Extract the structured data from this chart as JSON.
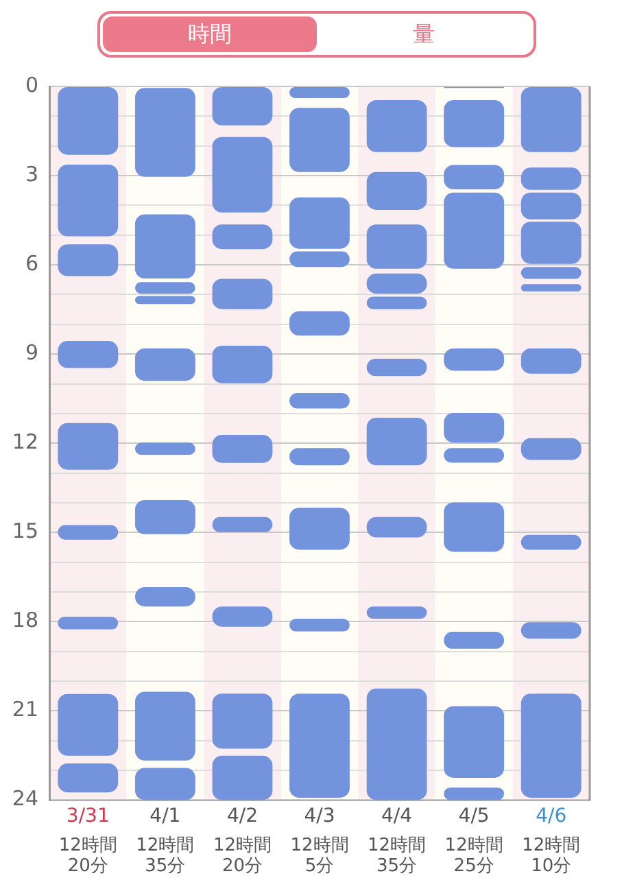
{
  "chart_data": {
    "type": "bar",
    "annotations": [
      "時間",
      "量"
    ],
    "categories": [
      "3/31",
      "4/1",
      "4/2",
      "4/3",
      "4/4",
      "4/5",
      "4/6"
    ],
    "totals": [
      "12時間20分",
      "12時間35分",
      "12時間20分",
      "12時間5分",
      "12時間35分",
      "12時間25分",
      "12時間10分"
    ],
    "series": [
      {
        "color": "#7393dc",
        "base": [
          0,
          0.05,
          0,
          0,
          0.46,
          0,
          0
        ],
        "values": [
          2.3,
          2.99,
          1.31,
          0.39,
          1.75,
          0.05,
          2.21
        ]
      },
      {
        "color": "#7393dc",
        "base": [
          2.63,
          4.3,
          1.7,
          0.72,
          2.88,
          0.46,
          2.73
        ],
        "values": [
          2.41,
          2.16,
          2.54,
          2.16,
          1.27,
          1.58,
          0.75
        ]
      },
      {
        "color": "#7393dc",
        "base": [
          5.31,
          6.58,
          4.64,
          3.73,
          4.64,
          2.64,
          3.57
        ],
        "values": [
          1.07,
          0.39,
          0.83,
          1.73,
          1.49,
          0.82,
          0.9
        ]
      },
      {
        "color": "#7393dc",
        "base": [
          8.56,
          7.05,
          6.47,
          5.55,
          6.29,
          3.57,
          4.55
        ],
        "values": [
          0.91,
          0.27,
          1.02,
          0.52,
          0.68,
          2.56,
          1.42
        ]
      },
      {
        "color": "#7393dc",
        "base": [
          11.32,
          8.81,
          8.72,
          7.56,
          7.07,
          8.81,
          6.07
        ],
        "values": [
          1.57,
          1.09,
          1.26,
          0.82,
          0.42,
          0.75,
          0.4
        ]
      },
      {
        "color": "#7393dc",
        "base": [
          14.75,
          11.98,
          11.72,
          10.31,
          9.16,
          10.98,
          6.65
        ],
        "values": [
          0.49,
          0.41,
          0.94,
          0.52,
          0.58,
          1.0,
          0.24
        ]
      },
      {
        "color": "#7393dc",
        "base": [
          17.84,
          13.91,
          14.48,
          12.16,
          11.14,
          12.16,
          8.81
        ],
        "values": [
          0.42,
          1.15,
          0.51,
          0.58,
          1.6,
          0.49,
          0.85
        ]
      },
      {
        "color": "#7393dc",
        "base": [
          20.43,
          16.84,
          17.49,
          14.17,
          14.48,
          13.99,
          11.83
        ],
        "values": [
          2.08,
          0.65,
          0.68,
          1.41,
          0.69,
          1.66,
          0.73
        ]
      },
      {
        "color": "#7393dc",
        "base": [
          22.77,
          20.36,
          20.42,
          17.9,
          17.49,
          18.34,
          15.08
        ],
        "values": [
          0.97,
          2.31,
          1.85,
          0.43,
          0.41,
          0.57,
          0.5
        ]
      },
      {
        "color": "#7393dc",
        "base": [
          null,
          22.92,
          22.51,
          20.42,
          20.25,
          20.84,
          18.02
        ],
        "values": [
          null,
          1.08,
          1.49,
          3.5,
          3.75,
          2.41,
          0.55
        ]
      },
      {
        "color": "#7393dc",
        "base": [
          null,
          null,
          null,
          null,
          null,
          23.58,
          20.42
        ],
        "values": [
          null,
          null,
          null,
          null,
          null,
          0.42,
          3.5
        ]
      }
    ],
    "ylim": [
      24,
      0
    ],
    "yticks": [
      0,
      {
        "value": 1,
        "label": null
      },
      {
        "value": 2,
        "label": null
      },
      3,
      {
        "value": 4,
        "label": null
      },
      {
        "value": 5,
        "label": null
      },
      6,
      {
        "value": 7,
        "label": null
      },
      {
        "value": 8,
        "label": null
      },
      9,
      {
        "value": 10,
        "label": null
      },
      {
        "value": 11,
        "label": null
      },
      12,
      {
        "value": 13,
        "label": null
      },
      {
        "value": 14,
        "label": null
      },
      15,
      {
        "value": 16,
        "label": null
      },
      {
        "value": 17,
        "label": null
      },
      18,
      {
        "value": 19,
        "label": null
      },
      {
        "value": 20,
        "label": null
      },
      21,
      {
        "value": 22,
        "label": null
      },
      {
        "value": 23,
        "label": null
      },
      24
    ],
    "grid": "y",
    "legend": false
  }
}
